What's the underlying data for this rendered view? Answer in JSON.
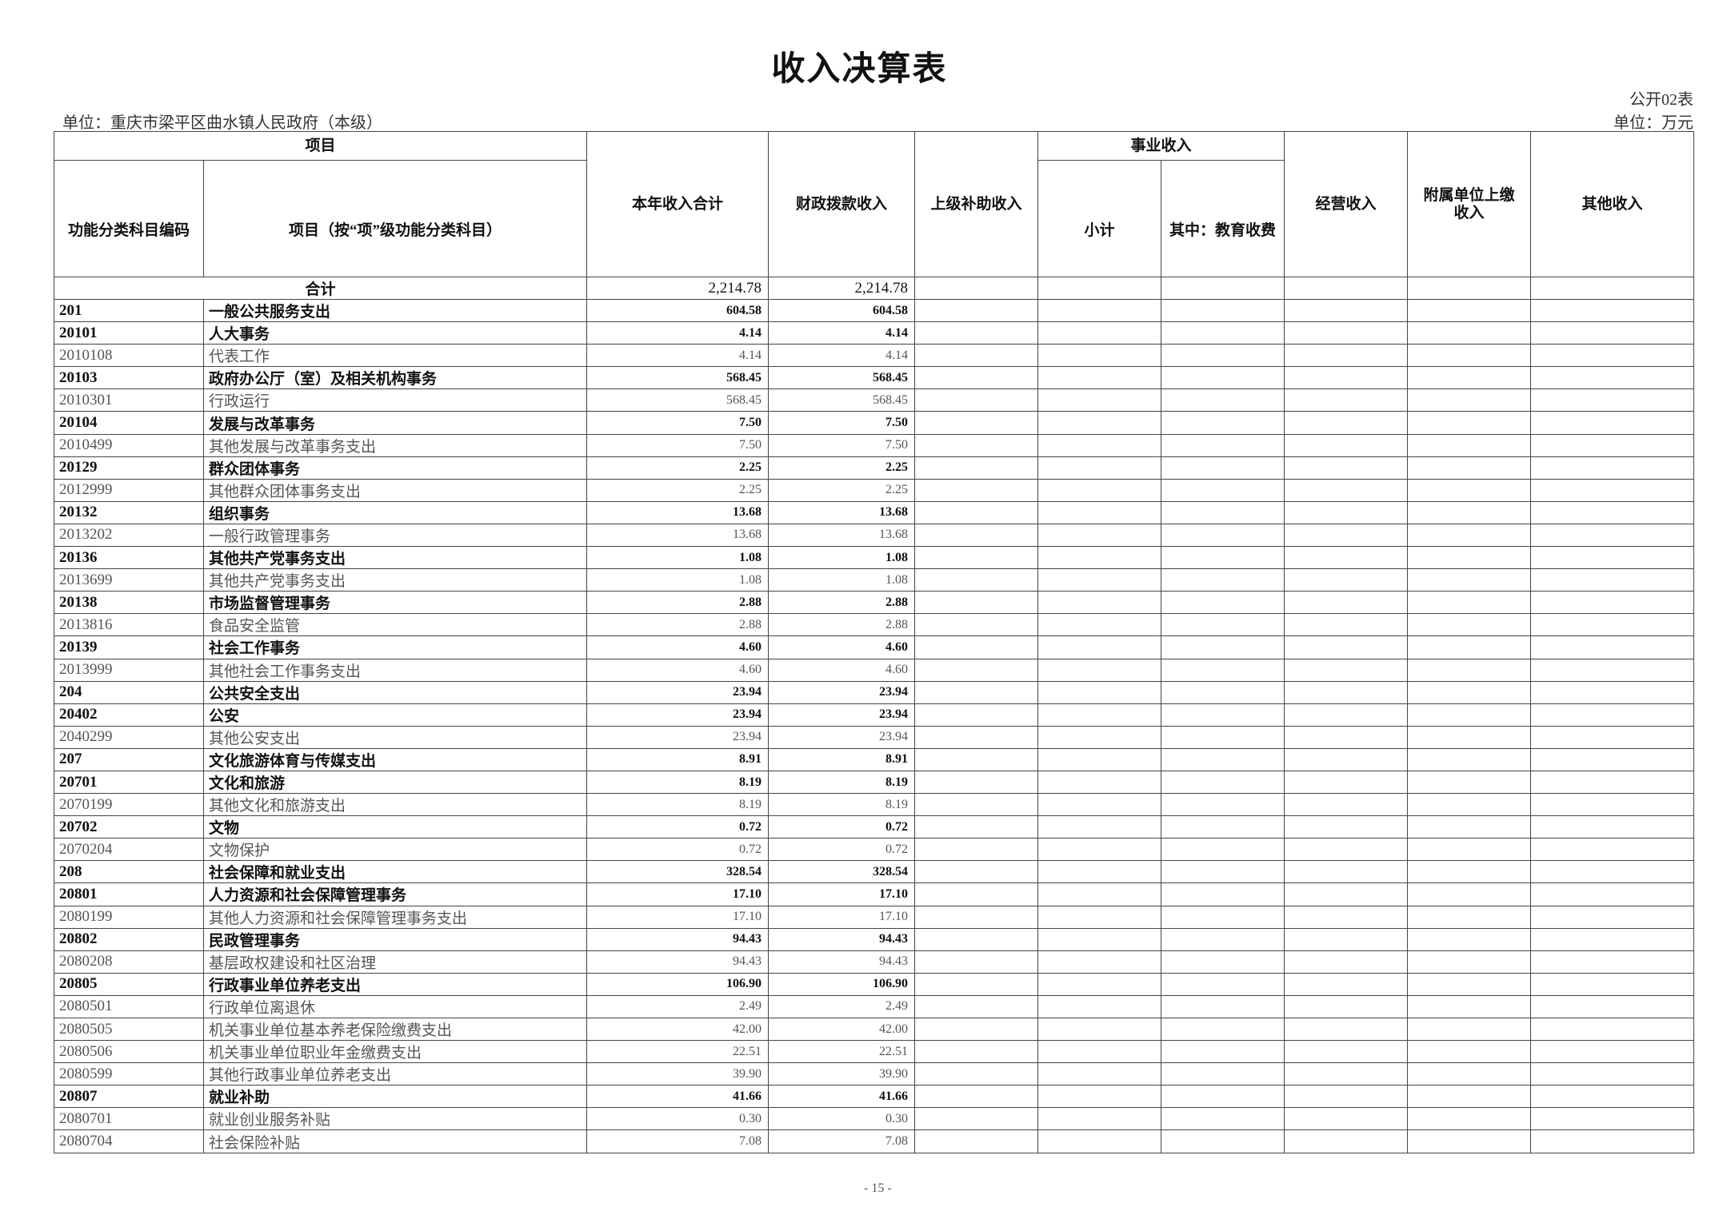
{
  "title": "收入决算表",
  "form_no": "公开02表",
  "unit_org": "单位：重庆市梁平区曲水镇人民政府（本级）",
  "unit_currency": "单位：万元",
  "headers": {
    "item_group": "项目",
    "code": "功能分类科目编码",
    "name": "项目（按“项”级功能分类科目）",
    "total_income": "本年收入合计",
    "fiscal": "财政拨款收入",
    "superior_subsidy": "上级补助收入",
    "business_group": "事业收入",
    "subtotal": "小计",
    "education_fee": "其中：教育收费",
    "operating": "经营收入",
    "affiliated": "附属单位上缴收入",
    "other": "其他收入"
  },
  "total_row": {
    "label": "合计",
    "total": "2,214.78",
    "fiscal": "2,214.78"
  },
  "rows": [
    {
      "code": "201",
      "name": "一般公共服务支出",
      "total": "604.58",
      "fiscal": "604.58",
      "level": "bold"
    },
    {
      "code": "20101",
      "name": "人大事务",
      "total": "4.14",
      "fiscal": "4.14",
      "level": "bold"
    },
    {
      "code": "2010108",
      "name": "代表工作",
      "total": "4.14",
      "fiscal": "4.14",
      "level": "leaf"
    },
    {
      "code": "20103",
      "name": "政府办公厅（室）及相关机构事务",
      "total": "568.45",
      "fiscal": "568.45",
      "level": "bold"
    },
    {
      "code": "2010301",
      "name": "行政运行",
      "total": "568.45",
      "fiscal": "568.45",
      "level": "leaf"
    },
    {
      "code": "20104",
      "name": "发展与改革事务",
      "total": "7.50",
      "fiscal": "7.50",
      "level": "bold"
    },
    {
      "code": "2010499",
      "name": "其他发展与改革事务支出",
      "total": "7.50",
      "fiscal": "7.50",
      "level": "leaf"
    },
    {
      "code": "20129",
      "name": "群众团体事务",
      "total": "2.25",
      "fiscal": "2.25",
      "level": "bold"
    },
    {
      "code": "2012999",
      "name": "其他群众团体事务支出",
      "total": "2.25",
      "fiscal": "2.25",
      "level": "leaf"
    },
    {
      "code": "20132",
      "name": "组织事务",
      "total": "13.68",
      "fiscal": "13.68",
      "level": "bold"
    },
    {
      "code": "2013202",
      "name": "一般行政管理事务",
      "total": "13.68",
      "fiscal": "13.68",
      "level": "leaf"
    },
    {
      "code": "20136",
      "name": "其他共产党事务支出",
      "total": "1.08",
      "fiscal": "1.08",
      "level": "bold"
    },
    {
      "code": "2013699",
      "name": "其他共产党事务支出",
      "total": "1.08",
      "fiscal": "1.08",
      "level": "leaf"
    },
    {
      "code": "20138",
      "name": "市场监督管理事务",
      "total": "2.88",
      "fiscal": "2.88",
      "level": "bold"
    },
    {
      "code": "2013816",
      "name": "食品安全监管",
      "total": "2.88",
      "fiscal": "2.88",
      "level": "leaf"
    },
    {
      "code": "20139",
      "name": "社会工作事务",
      "total": "4.60",
      "fiscal": "4.60",
      "level": "bold"
    },
    {
      "code": "2013999",
      "name": "其他社会工作事务支出",
      "total": "4.60",
      "fiscal": "4.60",
      "level": "leaf"
    },
    {
      "code": "204",
      "name": "公共安全支出",
      "total": "23.94",
      "fiscal": "23.94",
      "level": "bold"
    },
    {
      "code": "20402",
      "name": "公安",
      "total": "23.94",
      "fiscal": "23.94",
      "level": "bold"
    },
    {
      "code": "2040299",
      "name": "其他公安支出",
      "total": "23.94",
      "fiscal": "23.94",
      "level": "leaf"
    },
    {
      "code": "207",
      "name": "文化旅游体育与传媒支出",
      "total": "8.91",
      "fiscal": "8.91",
      "level": "bold"
    },
    {
      "code": "20701",
      "name": "文化和旅游",
      "total": "8.19",
      "fiscal": "8.19",
      "level": "bold"
    },
    {
      "code": "2070199",
      "name": "其他文化和旅游支出",
      "total": "8.19",
      "fiscal": "8.19",
      "level": "leaf"
    },
    {
      "code": "20702",
      "name": "文物",
      "total": "0.72",
      "fiscal": "0.72",
      "level": "bold"
    },
    {
      "code": "2070204",
      "name": "文物保护",
      "total": "0.72",
      "fiscal": "0.72",
      "level": "leaf"
    },
    {
      "code": "208",
      "name": "社会保障和就业支出",
      "total": "328.54",
      "fiscal": "328.54",
      "level": "bold"
    },
    {
      "code": "20801",
      "name": "人力资源和社会保障管理事务",
      "total": "17.10",
      "fiscal": "17.10",
      "level": "bold"
    },
    {
      "code": "2080199",
      "name": "其他人力资源和社会保障管理事务支出",
      "total": "17.10",
      "fiscal": "17.10",
      "level": "leaf"
    },
    {
      "code": "20802",
      "name": "民政管理事务",
      "total": "94.43",
      "fiscal": "94.43",
      "level": "bold"
    },
    {
      "code": "2080208",
      "name": "基层政权建设和社区治理",
      "total": "94.43",
      "fiscal": "94.43",
      "level": "leaf"
    },
    {
      "code": "20805",
      "name": "行政事业单位养老支出",
      "total": "106.90",
      "fiscal": "106.90",
      "level": "bold"
    },
    {
      "code": "2080501",
      "name": "行政单位离退休",
      "total": "2.49",
      "fiscal": "2.49",
      "level": "leaf"
    },
    {
      "code": "2080505",
      "name": "机关事业单位基本养老保险缴费支出",
      "total": "42.00",
      "fiscal": "42.00",
      "level": "leaf"
    },
    {
      "code": "2080506",
      "name": "机关事业单位职业年金缴费支出",
      "total": "22.51",
      "fiscal": "22.51",
      "level": "leaf"
    },
    {
      "code": "2080599",
      "name": "其他行政事业单位养老支出",
      "total": "39.90",
      "fiscal": "39.90",
      "level": "leaf"
    },
    {
      "code": "20807",
      "name": "就业补助",
      "total": "41.66",
      "fiscal": "41.66",
      "level": "bold"
    },
    {
      "code": "2080701",
      "name": "就业创业服务补贴",
      "total": "0.30",
      "fiscal": "0.30",
      "level": "leaf"
    },
    {
      "code": "2080704",
      "name": "社会保险补贴",
      "total": "7.08",
      "fiscal": "7.08",
      "level": "leaf"
    }
  ],
  "page_number": "- 15 -"
}
